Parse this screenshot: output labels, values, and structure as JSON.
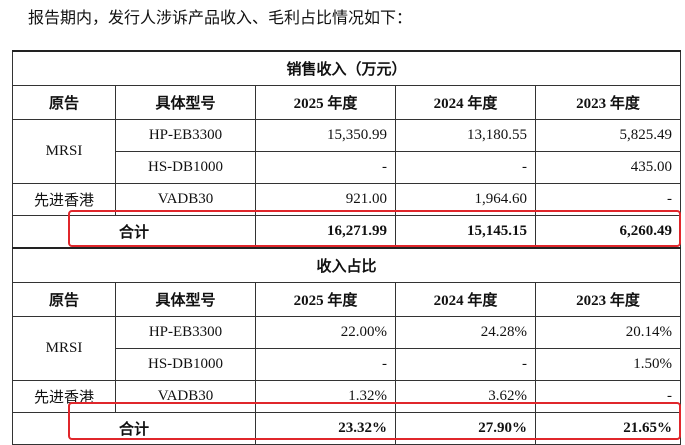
{
  "intro": "报告期内，发行人涉诉产品收入、毛利占比情况如下：",
  "sections": [
    {
      "title": "销售收入（万元）",
      "header": [
        "原告",
        "具体型号",
        "2025 年度",
        "2024 年度",
        "2023 年度"
      ],
      "groups": [
        {
          "plaintiff": "MRSI",
          "models": [
            {
              "model": "HP-EB3300",
              "values": [
                "15,350.99",
                "13,180.55",
                "5,825.49"
              ]
            },
            {
              "model": "HS-DB1000",
              "values": [
                "-",
                "-",
                "435.00"
              ]
            }
          ]
        },
        {
          "plaintiff": "先进香港",
          "models": [
            {
              "model": "VADB30",
              "values": [
                "921.00",
                "1,964.60",
                "-"
              ]
            }
          ]
        }
      ],
      "total": {
        "label": "合计",
        "values": [
          "16,271.99",
          "15,145.15",
          "6,260.49"
        ]
      }
    },
    {
      "title": "收入占比",
      "header": [
        "原告",
        "具体型号",
        "2025 年度",
        "2024 年度",
        "2023 年度"
      ],
      "groups": [
        {
          "plaintiff": "MRSI",
          "models": [
            {
              "model": "HP-EB3300",
              "values": [
                "22.00%",
                "24.28%",
                "20.14%"
              ]
            },
            {
              "model": "HS-DB1000",
              "values": [
                "-",
                "-",
                "1.50%"
              ]
            }
          ]
        },
        {
          "plaintiff": "先进香港",
          "models": [
            {
              "model": "VADB30",
              "values": [
                "1.32%",
                "3.62%",
                "-"
              ]
            }
          ]
        }
      ],
      "total": {
        "label": "合计",
        "values": [
          "23.32%",
          "27.90%",
          "21.65%"
        ]
      }
    }
  ]
}
